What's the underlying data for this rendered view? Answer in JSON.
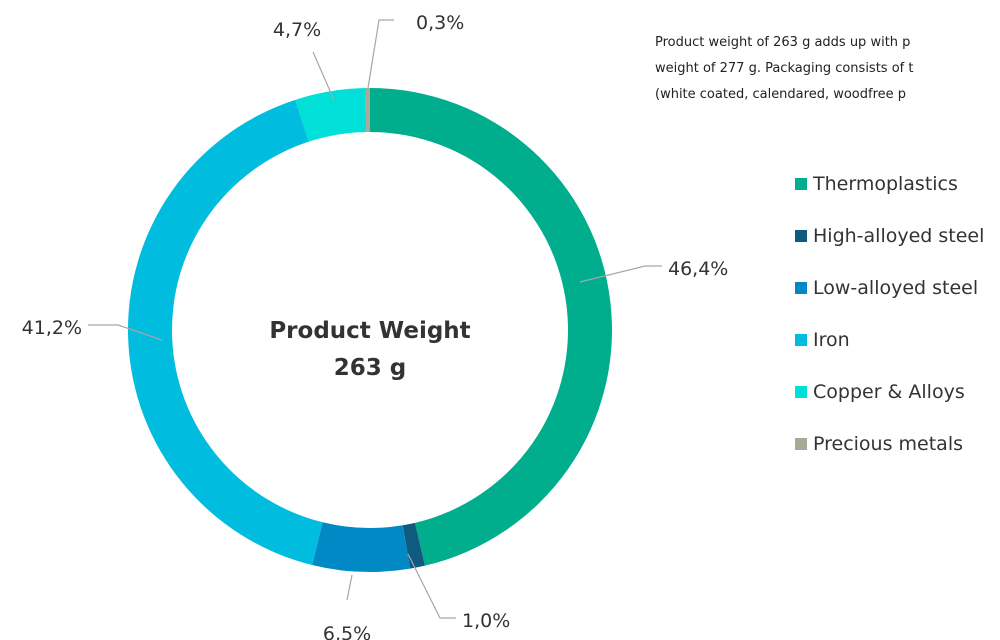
{
  "description": {
    "lines": [
      "Product weight of 263  g adds up with p",
      "weight of 277 g. Packaging consists of t",
      "(white coated, calendared, woodfree  p"
    ]
  },
  "center": {
    "title": "Product Weight",
    "value": "263 g"
  },
  "chart_data": {
    "type": "donut",
    "unit": "%",
    "start": "top, clockwise",
    "slices": [
      {
        "name": "Thermoplastics",
        "value": 46.4,
        "label": "46,4%",
        "color": "#00ad8c"
      },
      {
        "name": "High-alloyed steel",
        "value": 1.0,
        "label": "1,0%",
        "color": "#0f5b80"
      },
      {
        "name": "Low-alloyed steel",
        "value": 6.5,
        "label": "6,5%",
        "color": "#0089c4"
      },
      {
        "name": "Iron",
        "value": 41.2,
        "label": "41,2%",
        "color": "#00bcde"
      },
      {
        "name": "Copper & Alloys",
        "value": 4.7,
        "label": "4,7%",
        "color": "#00e0d8"
      },
      {
        "name": "Precious metals",
        "value": 0.3,
        "label": "0,3%",
        "color": "#aaa897"
      }
    ],
    "legend": {
      "position": "right"
    }
  }
}
